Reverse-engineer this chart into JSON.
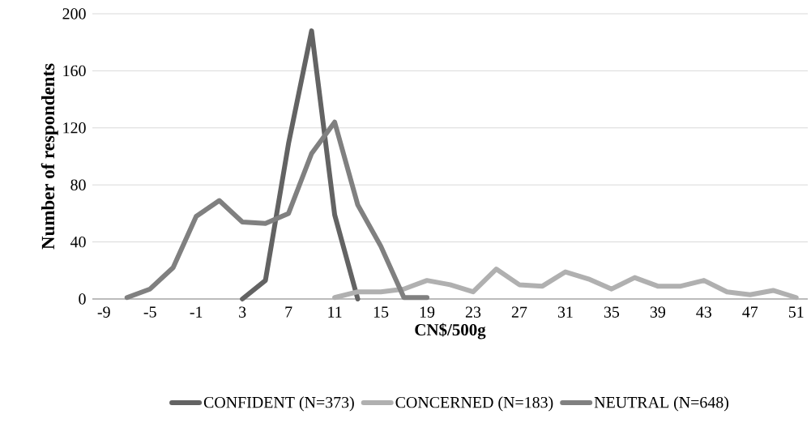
{
  "chart_data": {
    "type": "line",
    "xlabel": "CN$/500g",
    "ylabel": "Number of respondents",
    "xlim": [
      -10,
      52
    ],
    "xticks": [
      -9,
      -5,
      -1,
      3,
      7,
      11,
      15,
      19,
      23,
      27,
      31,
      35,
      39,
      43,
      47,
      51
    ],
    "ylim": [
      0,
      200
    ],
    "yticks": [
      0,
      40,
      80,
      120,
      160,
      200
    ],
    "grid": "y",
    "legend": "bottom",
    "series": [
      {
        "name": "CONFIDENT (N=373)",
        "color": "#636363",
        "x": [
          3,
          5,
          7,
          9,
          11,
          13
        ],
        "values": [
          0,
          13,
          109,
          188,
          59,
          0
        ]
      },
      {
        "name": "CONCERNED (N=183)",
        "color": "#b0b0b0",
        "x": [
          11,
          13,
          15,
          17,
          19,
          21,
          23,
          25,
          27,
          29,
          31,
          33,
          35,
          37,
          39,
          41,
          43,
          45,
          47,
          49,
          51
        ],
        "values": [
          1,
          5,
          5,
          7,
          13,
          10,
          5,
          21,
          10,
          9,
          19,
          14,
          7,
          15,
          9,
          9,
          13,
          5,
          3,
          6,
          1
        ]
      },
      {
        "name": "NEUTRAL (N=648)",
        "color": "#808080",
        "x": [
          -7,
          -5,
          -3,
          -1,
          1,
          3,
          5,
          7,
          9,
          11,
          13,
          15,
          17,
          19
        ],
        "values": [
          1,
          7,
          22,
          58,
          69,
          54,
          53,
          60,
          102,
          124,
          66,
          37,
          1,
          1
        ]
      }
    ]
  }
}
